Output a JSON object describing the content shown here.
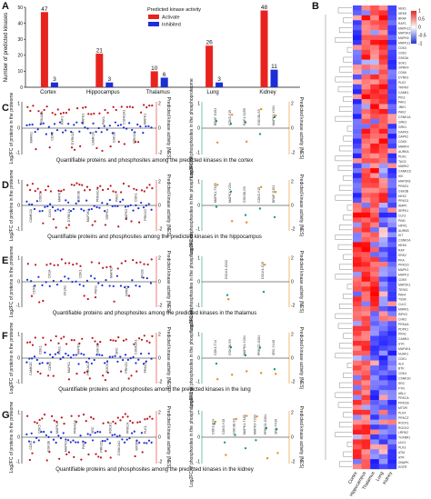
{
  "chart_data": [
    {
      "panel": "A",
      "type": "bar",
      "ylabel": "Number of predicted kinases",
      "ylim": [
        0,
        50
      ],
      "yticks": [
        0,
        10,
        20,
        30,
        40,
        50
      ],
      "legend_title": "Predicted kinase activity",
      "legend_position": "top-center",
      "categories": [
        "Cortex",
        "Hippocampus",
        "Thalamus",
        "Lung",
        "Kidney"
      ],
      "series": [
        {
          "name": "Activate",
          "color": "#e8231e",
          "values": [
            47,
            21,
            10,
            26,
            48
          ]
        },
        {
          "name": "Inhibited",
          "color": "#1b2fd6",
          "values": [
            3,
            3,
            6,
            3,
            11
          ]
        }
      ]
    },
    {
      "panel": "B",
      "type": "heatmap",
      "columns": [
        "Cortex",
        "Hippocampus",
        "Thalamus",
        "Lung",
        "Kidney"
      ],
      "colorbar_ticks": [
        "1",
        "0.5",
        "0",
        "-0.5",
        "-1"
      ],
      "colorbar_range": [
        -1,
        1
      ],
      "rows": [
        "NEK1",
        "NEK8",
        "BRAF",
        "RAF1",
        "MAPK12",
        "MAP3K3",
        "MAPK8",
        "MAPK11",
        "CDK3",
        "CDK2",
        "GSK3A",
        "SGK1",
        "GPRK4",
        "CDK6",
        "DYRK3",
        "PLK2",
        "TRPM7",
        "CAMK1",
        "PIK3",
        "PAK1",
        "JNK1",
        "PAK2",
        "CSNK1A",
        "GRK2",
        "GRK1",
        "DAPK3",
        "DAPK2",
        "CDK5",
        "MARK4",
        "AURKA",
        "PDK1",
        "TAO2",
        "MARK2",
        "CAMK1D",
        "IKK",
        "MAP3K8",
        "PRKD1",
        "GSK3B",
        "NEK2",
        "PRKG1",
        "AMPK",
        "SRPK1",
        "CLK1",
        "PIM1",
        "HIPK1",
        "AURKB",
        "KIT",
        "CSNK2A",
        "NEK6",
        "RAF",
        "ERK2",
        "PKA",
        "PRKCD",
        "MAPK1",
        "MAPK3",
        "CDK9",
        "MAP2K1",
        "TESK1",
        "PAK4",
        "TSSK",
        "CLK2",
        "MARK1",
        "RIPK3",
        "CHK2",
        "PRKAA",
        "PDPK1",
        "PKN1",
        "CAMK4",
        "SYK",
        "MAP4K4",
        "NUAK1",
        "CDK1",
        "ALK",
        "BTK",
        "CDK4",
        "CSNK1D",
        "SRC",
        "FYN",
        "ABL1",
        "PRKCA",
        "PRKCB",
        "MTOR",
        "PLK4",
        "PRKCZ",
        "ROCK1",
        "ROCK2",
        "LRRK2",
        "TGFBR1",
        "ULK1",
        "PLK3",
        "ATM",
        "ATR",
        "DNAPK",
        "EGFR"
      ],
      "values_summary": "per-row activity scores between -1 (blue) and 1 (red) across the five tissues"
    },
    {
      "panel": "C",
      "type": "scatter",
      "tissue": "cortex",
      "xlabel": "Quantifiable proteins and phosphosites among the predicted kinases in the cortex",
      "ylabel_left": "Log2FC of proteins in the proteome",
      "ylabel_mid": "Predicted kinase activity (NES)",
      "ylabel_right_a": "Log2FC of phosphosites in the phosphoproteome",
      "ylabel_right_b": "Predicted kinase activity (NES)",
      "left_ylim": [
        -1,
        1
      ],
      "right_ylim": [
        -1,
        1
      ],
      "left_labels": [
        "MARK1",
        "PRKACA",
        "CDK5",
        "RAF1",
        "DYRK1A",
        "MAPK3",
        "CAMK2A",
        "PAK1",
        "GSK3B",
        "CSNK2A1",
        "PRKCG",
        "MAPK1"
      ],
      "right_labels": [
        "BRAF-S151",
        "CDK5-Y15",
        "RAF1-S259",
        "GSK3B-S9",
        "MAPK3-Y204"
      ]
    },
    {
      "panel": "D",
      "type": "scatter",
      "tissue": "hippocampus",
      "xlabel": "Quantifiable proteins and phosphosites among the predicted kinases in the hippocampus",
      "ylabel_left": "Log2FC of proteins in the proteome",
      "ylabel_mid": "Predicted kinase activity (NES)",
      "ylabel_right_a": "Log2FC of phosphosites in the phosphoproteome",
      "ylabel_right_b": "Predicted kinase activity (NES)",
      "left_ylim": [
        -1,
        1
      ],
      "right_ylim": [
        -1,
        1
      ],
      "left_labels": [
        "CAMK2A",
        "CDK5",
        "CLK1",
        "MAPK1",
        "DYRK1A",
        "GSK3B",
        "MAP2K1",
        "PRKACA",
        "SRPK1",
        "PAK1",
        "MAPK3",
        "CDK1",
        "PRKCG"
      ],
      "right_labels": [
        "MAPK1-T185",
        "MAPK3-Y204",
        "GSK3B-S9",
        "CDK5-Y15",
        "BRAF-S151"
      ]
    },
    {
      "panel": "E",
      "type": "scatter",
      "tissue": "thalamus",
      "xlabel": "Quantifiable proteins and phosphosites among the predicted kinases in the thalamus",
      "ylabel_left": "Log2FC of proteins in the proteome",
      "ylabel_mid": "Predicted kinase activity (NES)",
      "ylabel_right_a": "Log2FC of phosphosites in the phosphoproteome",
      "ylabel_right_b": "Predicted kinase activity (NES)",
      "left_ylim": [
        -1,
        1
      ],
      "right_ylim": [
        -1,
        1
      ],
      "left_labels": [
        "CDK5",
        "CK1A",
        "CK2A2",
        "CDK1",
        "PKN1",
        "MAPK3",
        "GPRK2",
        "PKCB"
      ],
      "right_labels": [
        "DCLK1-S332",
        "DCLK1-S19"
      ]
    },
    {
      "panel": "F",
      "type": "scatter",
      "tissue": "lung",
      "xlabel": "Quantifiable proteins and phosphosites among the predicted kinases in the lung",
      "ylabel_left": "Log2FC of proteins in the proteome",
      "ylabel_mid": "Predicted kinase activity (NES)",
      "ylabel_right_a": "Log2FC of phosphosites in the phosphoproteome",
      "ylabel_right_b": "Predicted kinase activity (NES)",
      "left_ylim": [
        -1,
        1
      ],
      "right_ylim": [
        -1,
        1
      ],
      "left_labels": [
        "CAMK2D",
        "CDK1",
        "CDK5",
        "PAK1",
        "MAPK1",
        "MAPK3",
        "PRKACA",
        "GSK3B",
        "ROCK1",
        "SRC",
        "PRKCD",
        "CSNK2A1",
        "PRKCA"
      ],
      "right_labels": [
        "CDK1-T14",
        "GSK3B-S9",
        "MAPK3-Y204",
        "PRKCD-S304",
        "SRC-Y419"
      ]
    },
    {
      "panel": "G",
      "type": "scatter",
      "tissue": "kidney",
      "xlabel": "Quantifiable proteins and phosphosites among the predicted kinases in the kidney",
      "ylabel_left": "Log2FC of proteins in the proteome",
      "ylabel_mid": "Predicted kinase activity (NES)",
      "ylabel_right_a": "Log2FC of phosphosites in the phosphoproteome",
      "ylabel_right_b": "Predicted kinase activity (NES)",
      "left_ylim": [
        -1,
        1
      ],
      "right_ylim": [
        -1,
        1
      ],
      "left_labels": [
        "CDK1",
        "CDK5",
        "GSK3B",
        "MAPK1",
        "MAPK3",
        "PRKACA",
        "PAK1",
        "SRC",
        "PRKCD",
        "ROCK1",
        "CSNK2A1",
        "PRKCA",
        "MTOR",
        "PLK1"
      ],
      "right_labels": [
        "CDK1-T14",
        "CDK5-Y15",
        "GSK3B-S9",
        "MAPK1-T185",
        "MAPK3-Y204",
        "PRKCD-S304",
        "SRC-Y419"
      ]
    }
  ],
  "panel_letters": [
    "A",
    "B",
    "C",
    "D",
    "E",
    "F",
    "G"
  ]
}
